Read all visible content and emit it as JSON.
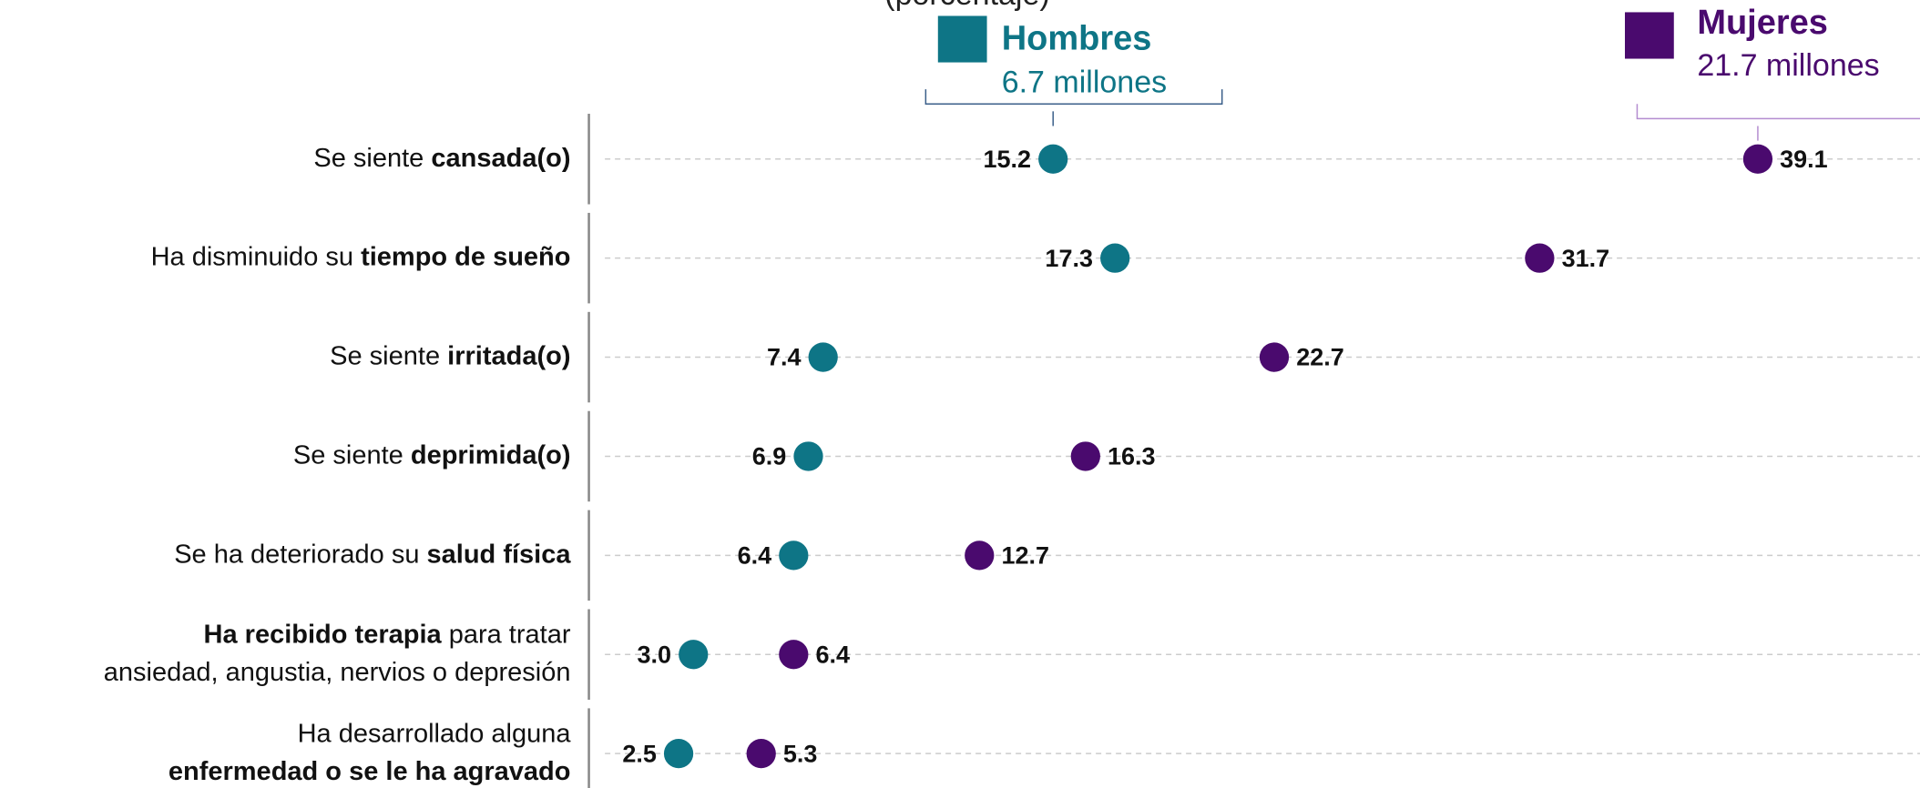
{
  "chart_data": {
    "type": "dot",
    "unit_label": "(porcentaje)",
    "categories": [
      [
        [
          {
            "text": "Se siente "
          },
          {
            "text": "cansada(o)",
            "bold": true
          }
        ]
      ],
      [
        [
          {
            "text": "Ha disminuido su "
          },
          {
            "text": "tiempo de sueño",
            "bold": true
          }
        ]
      ],
      [
        [
          {
            "text": "Se siente "
          },
          {
            "text": "irritada(o)",
            "bold": true
          }
        ]
      ],
      [
        [
          {
            "text": "Se siente "
          },
          {
            "text": "deprimida(o)",
            "bold": true
          }
        ]
      ],
      [
        [
          {
            "text": "Se ha deteriorado su "
          },
          {
            "text": "salud física",
            "bold": true
          }
        ]
      ],
      [
        [
          {
            "text": "Ha recibido terapia",
            "bold": true
          },
          {
            "text": " para tratar"
          }
        ],
        [
          {
            "text": "ansiedad, angustia, nervios o depresión"
          }
        ]
      ],
      [
        [
          {
            "text": "Ha desarrollado alguna"
          }
        ],
        [
          {
            "text": "enfermedad o se le ha agravado",
            "bold": true
          }
        ]
      ]
    ],
    "series": [
      {
        "name": "Hombres",
        "total": "6.7 millones",
        "color": "#0e7586",
        "label_side": "left",
        "values": [
          15.2,
          17.3,
          7.4,
          6.9,
          6.4,
          3.0,
          2.5
        ],
        "value_labels": [
          "15.2",
          "17.3",
          "7.4",
          "6.9",
          "6.4",
          "3.0",
          "2.5"
        ]
      },
      {
        "name": "Mujeres",
        "total": "21.7 millones",
        "color": "#4a0a6e",
        "label_side": "right",
        "values": [
          39.1,
          31.7,
          22.7,
          16.3,
          12.7,
          6.4,
          5.3
        ],
        "value_labels": [
          "39.1",
          "31.7",
          "22.7",
          "16.3",
          "12.7",
          "6.4",
          "5.3"
        ]
      }
    ],
    "xlim": [
      0,
      44.6
    ],
    "grid": true
  }
}
